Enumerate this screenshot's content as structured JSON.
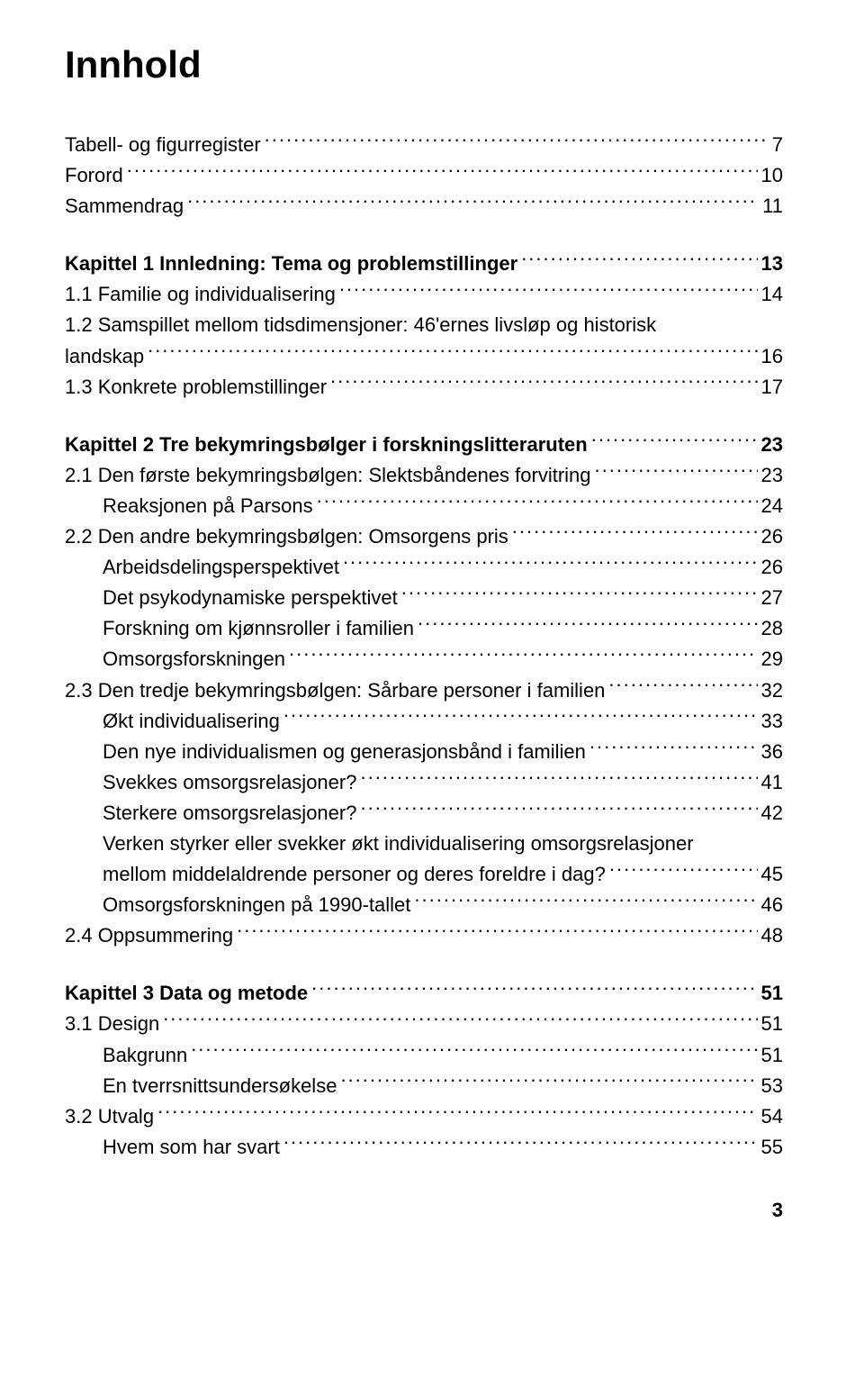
{
  "title": "Innhold",
  "page_number": "3",
  "entries": [
    {
      "label": "Tabell- og figurregister",
      "page": "7",
      "bold": false,
      "indent": 0
    },
    {
      "label": "Forord",
      "page": "10",
      "bold": false,
      "indent": 0
    },
    {
      "label": "Sammendrag",
      "page": "11",
      "bold": false,
      "indent": 0
    },
    {
      "gap": true
    },
    {
      "label": "Kapittel 1 Innledning: Tema og problemstillinger",
      "page": "13",
      "bold": true,
      "indent": 0
    },
    {
      "label": "1.1 Familie og individualisering",
      "page": "14",
      "bold": false,
      "indent": 0
    },
    {
      "multiline": true,
      "lines": [
        "1.2 Samspillet mellom tidsdimensjoner: 46'ernes livsløp og historisk",
        "landskap"
      ],
      "page": "16",
      "bold": false,
      "indent": 0
    },
    {
      "label": "1.3 Konkrete problemstillinger",
      "page": "17",
      "bold": false,
      "indent": 0
    },
    {
      "gap": true
    },
    {
      "label": "Kapittel 2 Tre bekymringsbølger i forskningslitteraruten",
      "page": "23",
      "bold": true,
      "indent": 0
    },
    {
      "label": "2.1 Den første bekymringsbølgen: Slektsbåndenes forvitring",
      "page": "23",
      "bold": false,
      "indent": 0
    },
    {
      "label": "Reaksjonen på Parsons",
      "page": "24",
      "bold": false,
      "indent": 1
    },
    {
      "label": "2.2 Den andre bekymringsbølgen: Omsorgens pris",
      "page": "26",
      "bold": false,
      "indent": 0
    },
    {
      "label": "Arbeidsdelingsperspektivet",
      "page": "26",
      "bold": false,
      "indent": 1
    },
    {
      "label": "Det psykodynamiske perspektivet",
      "page": "27",
      "bold": false,
      "indent": 1
    },
    {
      "label": "Forskning om kjønnsroller i familien",
      "page": "28",
      "bold": false,
      "indent": 1
    },
    {
      "label": "Omsorgsforskningen",
      "page": "29",
      "bold": false,
      "indent": 1
    },
    {
      "label": "2.3 Den tredje bekymringsbølgen: Sårbare personer i familien",
      "page": "32",
      "bold": false,
      "indent": 0
    },
    {
      "label": "Økt individualisering",
      "page": "33",
      "bold": false,
      "indent": 1
    },
    {
      "label": "Den nye individualismen og generasjonsbånd i familien",
      "page": "36",
      "bold": false,
      "indent": 1
    },
    {
      "label": "Svekkes omsorgsrelasjoner?",
      "page": "41",
      "bold": false,
      "indent": 1
    },
    {
      "label": "Sterkere omsorgsrelasjoner?",
      "page": "42",
      "bold": false,
      "indent": 1
    },
    {
      "multiline": true,
      "lines": [
        "Verken styrker eller svekker økt individualisering omsorgsrelasjoner",
        "mellom middelaldrende personer og deres foreldre i dag?"
      ],
      "page": "45",
      "bold": false,
      "indent": 1
    },
    {
      "label": "Omsorgsforskningen på 1990-tallet",
      "page": "46",
      "bold": false,
      "indent": 1
    },
    {
      "label": "2.4 Oppsummering",
      "page": "48",
      "bold": false,
      "indent": 0
    },
    {
      "gap": true
    },
    {
      "label": "Kapittel 3 Data og metode",
      "page": "51",
      "bold": true,
      "indent": 0
    },
    {
      "label": "3.1 Design",
      "page": "51",
      "bold": false,
      "indent": 0
    },
    {
      "label": "Bakgrunn",
      "page": "51",
      "bold": false,
      "indent": 1
    },
    {
      "label": "En tverrsnittsundersøkelse",
      "page": "53",
      "bold": false,
      "indent": 1
    },
    {
      "label": "3.2 Utvalg",
      "page": "54",
      "bold": false,
      "indent": 0
    },
    {
      "label": "Hvem som har svart",
      "page": "55",
      "bold": false,
      "indent": 1
    }
  ]
}
